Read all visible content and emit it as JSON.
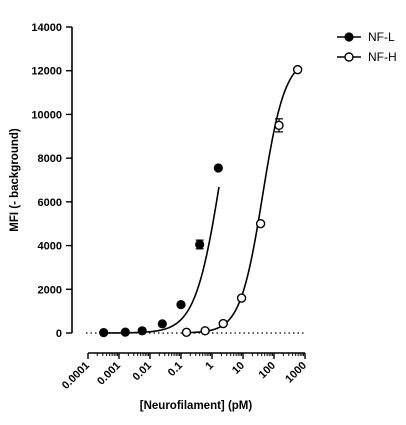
{
  "chart_data": {
    "type": "scatter",
    "xlabel": "[Neurofilament] (pM)",
    "ylabel": "MFI (- background)",
    "xscale": "log",
    "xlim": [
      0.0001,
      1000
    ],
    "ylim": [
      0,
      14000
    ],
    "x_ticks": [
      "0.0001",
      "0.001",
      "0.01",
      "0.1",
      "1",
      "10",
      "100",
      "1000"
    ],
    "y_ticks": [
      "0",
      "2000",
      "4000",
      "6000",
      "8000",
      "10000",
      "12000",
      "14000"
    ],
    "baseline": "dotted line at y = 0",
    "legend": {
      "placement": "top-right"
    },
    "series": [
      {
        "name": "NF-L",
        "marker": "filled-circle",
        "color": "#000000",
        "points": [
          {
            "x": 0.00032,
            "y": 20
          },
          {
            "x": 0.0016,
            "y": 40
          },
          {
            "x": 0.0056,
            "y": 100
          },
          {
            "x": 0.025,
            "y": 420
          },
          {
            "x": 0.1,
            "y": 1300
          },
          {
            "x": 0.4,
            "y": 4050,
            "err": 200
          },
          {
            "x": 1.6,
            "y": 7550
          }
        ],
        "fit_curve": {
          "bottom": 0,
          "top": 14500,
          "ec50": 1.95,
          "hill": 1.05
        }
      },
      {
        "name": "NF-H",
        "marker": "open-circle",
        "color": "#000000",
        "points": [
          {
            "x": 0.15,
            "y": 30
          },
          {
            "x": 0.6,
            "y": 100
          },
          {
            "x": 2.3,
            "y": 430
          },
          {
            "x": 9,
            "y": 1600
          },
          {
            "x": 37,
            "y": 5000
          },
          {
            "x": 145,
            "y": 9500,
            "err": 300
          },
          {
            "x": 580,
            "y": 12050
          }
        ],
        "fit_curve": {
          "bottom": 0,
          "top": 12600,
          "ec50": 43,
          "hill": 1.2
        }
      }
    ]
  }
}
